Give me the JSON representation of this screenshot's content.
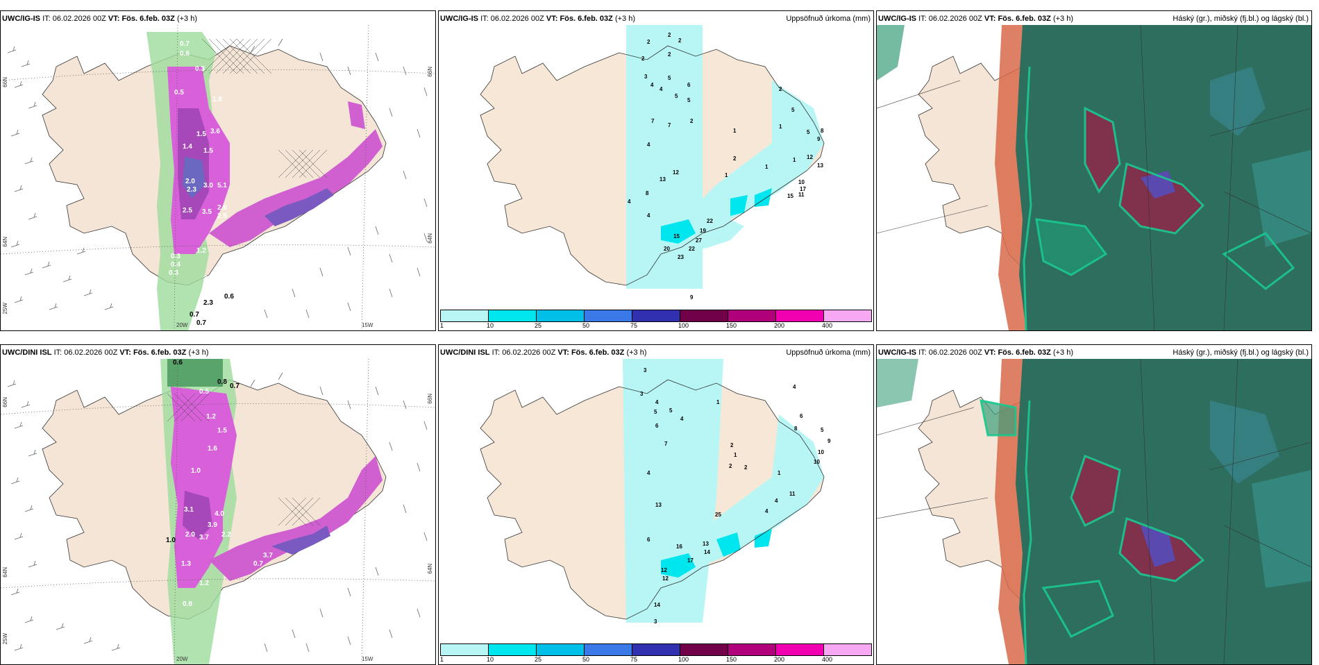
{
  "rows": [
    {
      "model": "UWC/IG-IS",
      "model_cloud": "UWC/IG-IS",
      "it_label": "IT:",
      "it_value": "06.02.2026 00Z",
      "vt_label": "VT:",
      "vt_value": "Fös. 6.feb. 03Z",
      "lead": "(+3 h)",
      "precip_numbers": [
        "2",
        "2",
        "2",
        "2",
        "2",
        "3",
        "4",
        "5",
        "6",
        "4",
        "5",
        "5",
        "7",
        "7",
        "2",
        "4",
        "13",
        "12",
        "4",
        "8",
        "4",
        "1",
        "2",
        "5",
        "8",
        "9",
        "1",
        "12",
        "13",
        "10",
        "11",
        "15",
        "17",
        "22",
        "19",
        "27",
        "22",
        "15",
        "20",
        "23",
        "9",
        "1",
        "1",
        "2",
        "1",
        "5"
      ]
    },
    {
      "model": "UWC/DINI ISL",
      "model_cloud": "UWC/IG-IS",
      "it_label": "IT:",
      "it_value": "06.02.2026 00Z",
      "vt_label": "VT:",
      "vt_value": "Fös. 6.feb. 03Z",
      "lead": "(+3 h)",
      "precip_numbers": [
        "3",
        "3",
        "4",
        "5",
        "5",
        "4",
        "6",
        "7",
        "4",
        "1",
        "4",
        "6",
        "8",
        "5",
        "9",
        "10",
        "10",
        "11",
        "2",
        "1",
        "2",
        "1",
        "13",
        "6",
        "16",
        "13",
        "14",
        "25",
        "17",
        "12",
        "12",
        "14",
        "3",
        "4",
        "2",
        "4"
      ]
    }
  ],
  "precip_title": "Uppsöfnuð úrkoma (mm)",
  "cloud_title": "Háský (gr.), miðský (fj.bl.) og lágský (bl.)",
  "lat_labels": [
    "66N",
    "64N"
  ],
  "lon_labels": [
    "20W",
    "15W"
  ],
  "lon_left": "25W",
  "colorbar": {
    "labels": [
      "1",
      "10",
      "25",
      "50",
      "75",
      "100",
      "150",
      "200",
      "400"
    ],
    "colors": [
      "#b8f6f6",
      "#00e6ef",
      "#00bfe8",
      "#3a78e8",
      "#3030b0",
      "#700048",
      "#b0007a",
      "#f000b0",
      "#f6a8f2"
    ]
  },
  "snow_values_top": [
    "0.7",
    "0.6",
    "0.3",
    "0.5",
    "1.8",
    "1.5",
    "3.6",
    "1.4",
    "1.5",
    "2.0",
    "3.0",
    "2.3",
    "5.1",
    "2.5",
    "3.5",
    "2.6",
    "2.5",
    "1.2",
    "3.3",
    "2.0",
    "0.3",
    "0.4",
    "0.3",
    "0.7",
    "0.7",
    "0.6",
    "2.3"
  ],
  "snow_values_bottom": [
    "0.6",
    "0.5",
    "0.8",
    "0.7",
    "1.2",
    "1.5",
    "1.6",
    "1.0",
    "3.1",
    "4.0",
    "3.9",
    "2.0",
    "3.7",
    "2.2",
    "1.3",
    "1.2",
    "0.8",
    "1.0",
    "3.7",
    "0.7"
  ]
}
